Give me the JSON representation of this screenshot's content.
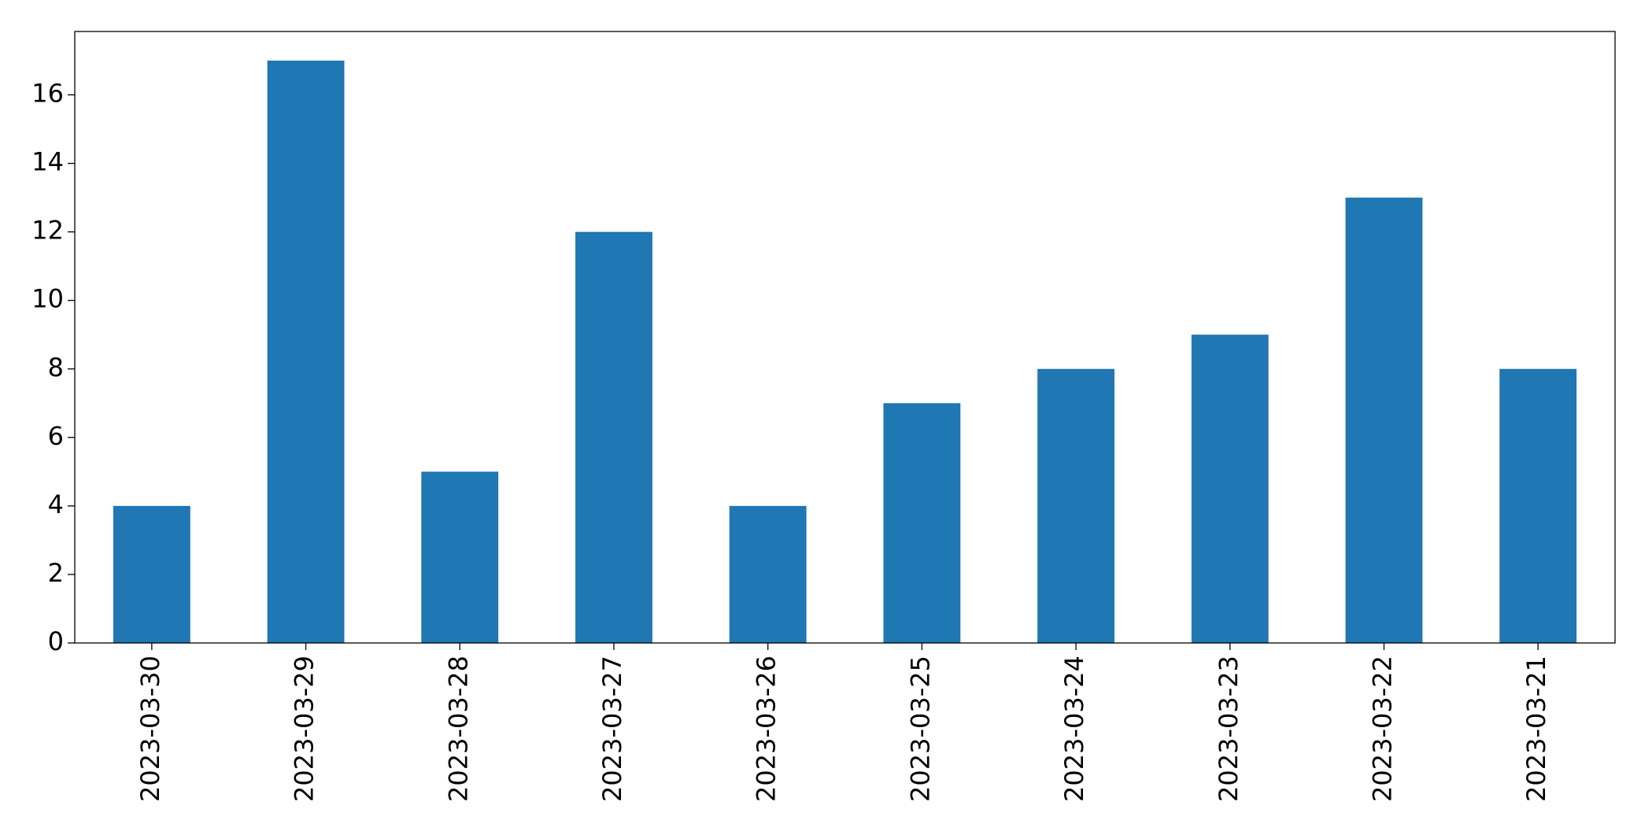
{
  "chart_data": {
    "type": "bar",
    "categories": [
      "2023-03-30",
      "2023-03-29",
      "2023-03-28",
      "2023-03-27",
      "2023-03-26",
      "2023-03-25",
      "2023-03-24",
      "2023-03-23",
      "2023-03-22",
      "2023-03-21"
    ],
    "values": [
      4,
      17,
      5,
      12,
      4,
      7,
      8,
      9,
      13,
      8
    ],
    "color": "#1f77b4",
    "ylim": [
      0,
      17.85
    ],
    "yticks": [
      0,
      2,
      4,
      6,
      8,
      10,
      12,
      14,
      16
    ],
    "grid": false
  }
}
